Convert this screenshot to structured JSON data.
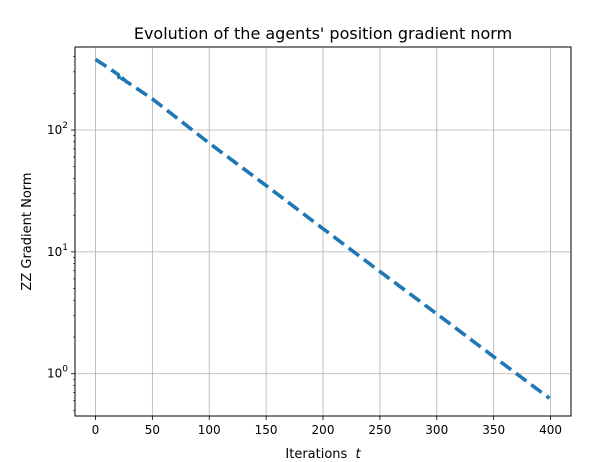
{
  "chart_data": {
    "type": "line",
    "title": "Evolution of the agents' position gradient norm",
    "xlabel": "Iterations",
    "xlabel_var": "t",
    "ylabel": "ZZ Gradient Norm",
    "yscale": "log",
    "xlim": [
      -18,
      418
    ],
    "ylim": [
      0.45,
      480
    ],
    "grid": true,
    "x_ticks": [
      0,
      50,
      100,
      150,
      200,
      250,
      300,
      350,
      400
    ],
    "y_ticks": [
      {
        "value": 1,
        "base": "10",
        "exp": "0"
      },
      {
        "value": 10,
        "base": "10",
        "exp": "1"
      },
      {
        "value": 100,
        "base": "10",
        "exp": "2"
      }
    ],
    "series": [
      {
        "name": "gradient norm",
        "color": "#1f77b4",
        "style": "dashed",
        "x": [
          0,
          10,
          20,
          22,
          24,
          27,
          30,
          40,
          50,
          100,
          150,
          200,
          250,
          300,
          350,
          399
        ],
        "y": [
          380,
          330,
          285,
          245,
          265,
          250,
          240,
          208,
          180,
          78,
          35,
          15.5,
          6.9,
          3.1,
          1.38,
          0.63
        ]
      }
    ]
  }
}
